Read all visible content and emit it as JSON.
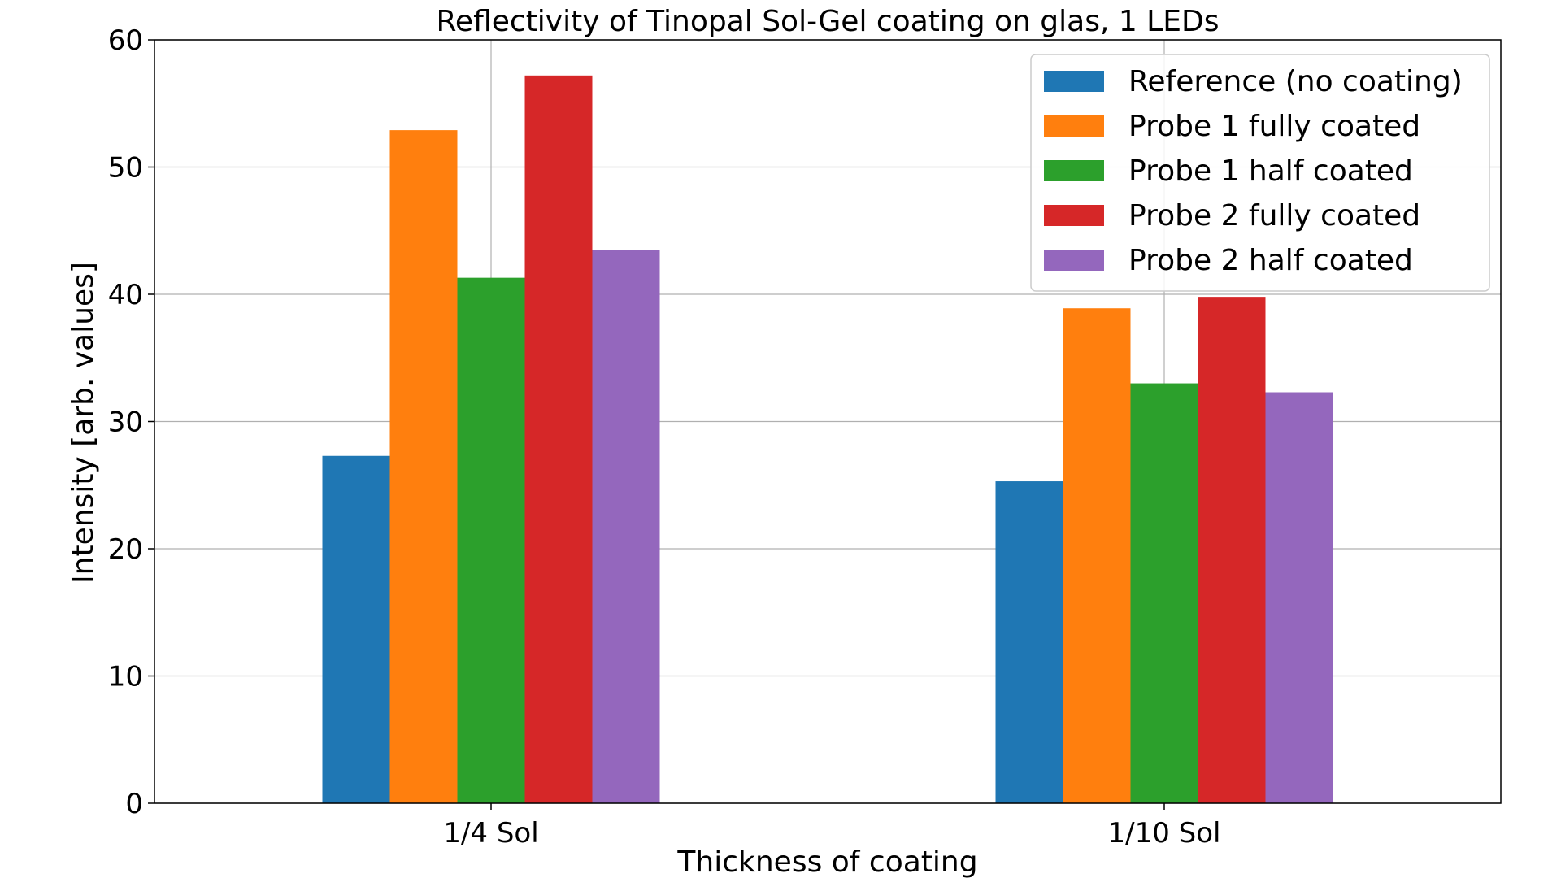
{
  "chart_data": {
    "type": "bar",
    "title": "Reflectivity of Tinopal Sol-Gel coating on glas, 1 LEDs",
    "xlabel": "Thickness of coating",
    "ylabel": "Intensity [arb. values]",
    "categories": [
      "1/4 Sol",
      "1/10 Sol"
    ],
    "ylim": [
      0,
      60
    ],
    "yticks": [
      0,
      10,
      20,
      30,
      40,
      50,
      60
    ],
    "grid": true,
    "legend_position": "top-right",
    "series": [
      {
        "name": "Reference (no coating)",
        "color": "#1f77b4",
        "values": [
          27.3,
          25.3
        ]
      },
      {
        "name": "Probe 1 fully coated",
        "color": "#ff7f0e",
        "values": [
          52.9,
          38.9
        ]
      },
      {
        "name": "Probe 1 half coated",
        "color": "#2ca02c",
        "values": [
          41.3,
          33.0
        ]
      },
      {
        "name": "Probe 2 fully coated",
        "color": "#d62728",
        "values": [
          57.2,
          39.8
        ]
      },
      {
        "name": "Probe 2 half coated",
        "color": "#9467bd",
        "values": [
          43.5,
          32.3
        ]
      }
    ]
  }
}
